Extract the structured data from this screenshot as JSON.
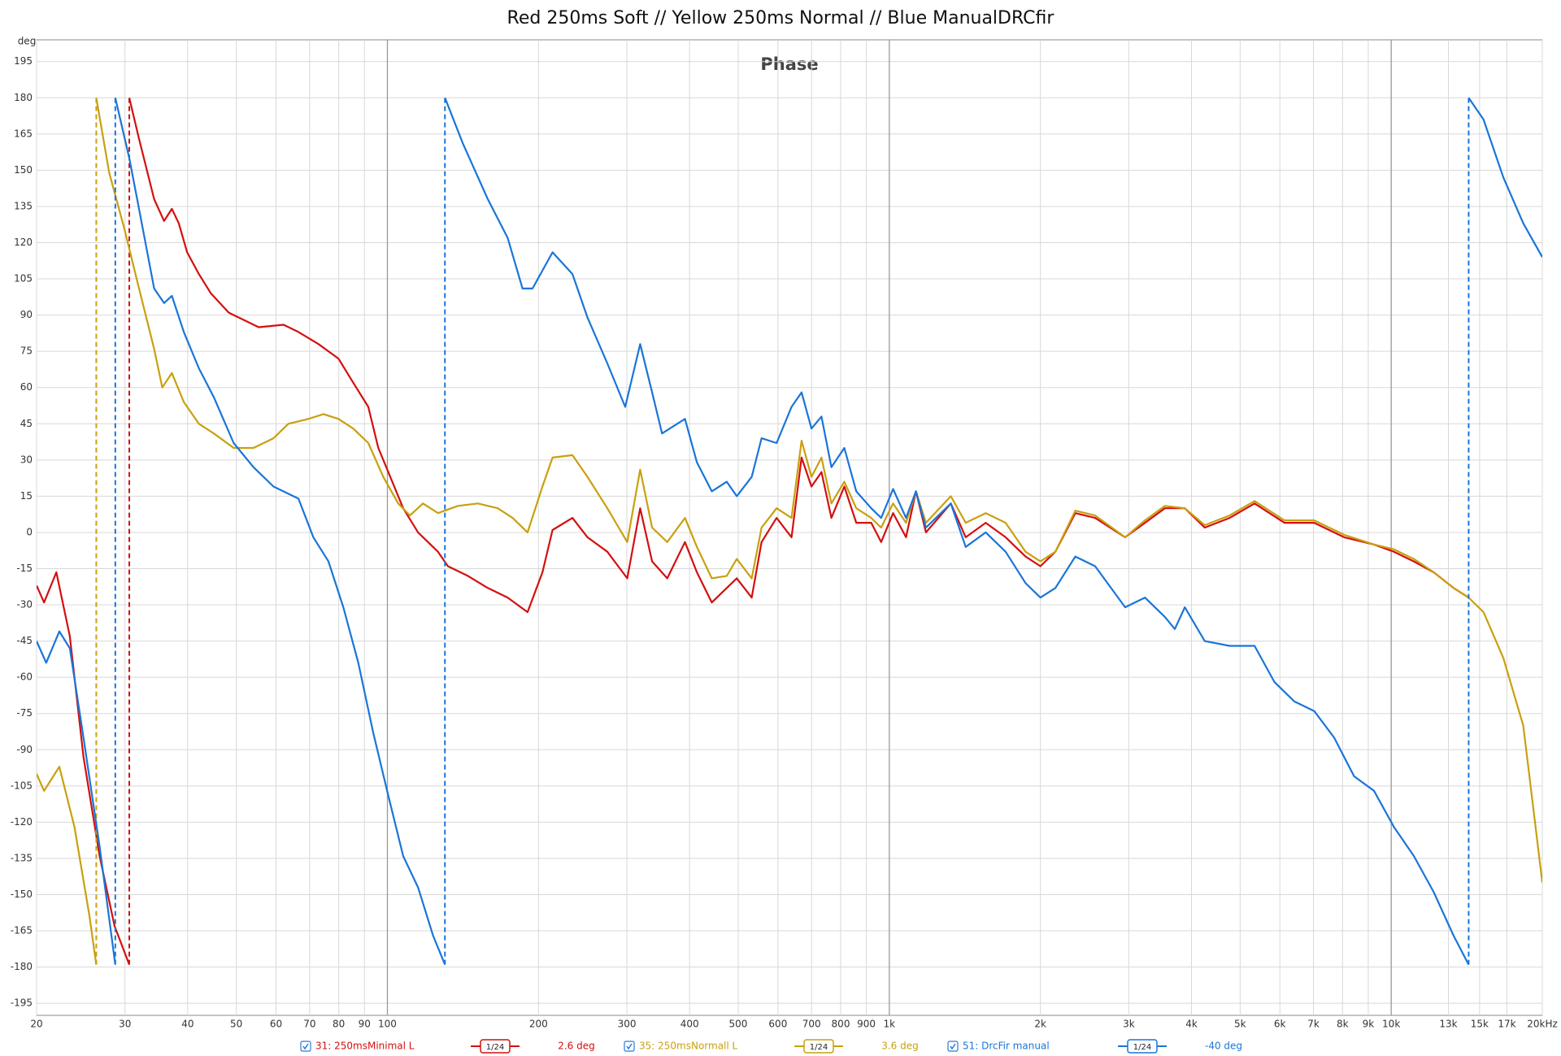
{
  "chart_data": {
    "type": "line",
    "title": "Red 250ms Soft // Yellow 250ms Normal // Blue ManualDRCfir",
    "subtitle": "Phase",
    "y_label": "deg",
    "log_x": true,
    "grid": true,
    "xlim": [
      20,
      20000
    ],
    "ylim": [
      -200,
      204
    ],
    "xticks": [
      20,
      30,
      40,
      50,
      60,
      70,
      80,
      90,
      100,
      200,
      300,
      400,
      500,
      600,
      700,
      800,
      900,
      {
        "value": 1000,
        "label": "1k"
      },
      {
        "value": 2000,
        "label": "2k"
      },
      {
        "value": 3000,
        "label": "3k"
      },
      {
        "value": 4000,
        "label": "4k"
      },
      {
        "value": 5000,
        "label": "5k"
      },
      {
        "value": 6000,
        "label": "6k"
      },
      {
        "value": 7000,
        "label": "7k"
      },
      {
        "value": 8000,
        "label": "8k"
      },
      {
        "value": 9000,
        "label": "9k"
      },
      {
        "value": 10000,
        "label": "10k"
      },
      {
        "value": 13000,
        "label": "13k"
      },
      {
        "value": 15000,
        "label": "15k"
      },
      {
        "value": 17000,
        "label": "17k"
      },
      {
        "value": 20000,
        "label": "20kHz"
      }
    ],
    "yticks": [
      195,
      180,
      165,
      150,
      135,
      120,
      105,
      90,
      75,
      60,
      45,
      30,
      15,
      0,
      -15,
      -30,
      -45,
      -60,
      -75,
      -90,
      -105,
      -120,
      -135,
      -150,
      -165,
      -180,
      -195
    ],
    "series": [
      {
        "name": "31: 250msMinimal L",
        "color": "#d40f0f",
        "smoothing": "1/24",
        "offset": "2.6 deg",
        "x": [
          20,
          20.7,
          21.9,
          23.3,
          24.8,
          26.7,
          28.6,
          30.6,
          30.6,
          32.0,
          34.3,
          35.9,
          37.2,
          38.4,
          39.9,
          42.1,
          44.5,
          48.3,
          55.4,
          62.1,
          66.5,
          72.9,
          79.9,
          85.5,
          91.6,
          95.9,
          100.4,
          107.5,
          115.1,
          126.1,
          132.0,
          144.6,
          158.5,
          173.6,
          190.2,
          203.7,
          213.3,
          233.7,
          250.4,
          274.3,
          300.5,
          318.9,
          336.9,
          361,
          391.6,
          413.7,
          443,
          474.4,
          496.6,
          531.9,
          556.6,
          596.3,
          638.5,
          668.5,
          699.8,
          732.5,
          766.6,
          813.6,
          859.5,
          920.4,
          963.4,
          1017.6,
          1079.8,
          1130.1,
          1183,
          1326,
          1420,
          1556,
          1705,
          1868,
          2000,
          2142,
          2347,
          2571,
          2950,
          3232,
          3541,
          3880,
          4251,
          4765,
          5343,
          6127,
          7025,
          8058,
          9241,
          10127,
          11093,
          12154,
          13315,
          14266
        ],
        "values": [
          -22,
          -29,
          -16.5,
          -43,
          -93,
          -134,
          -163,
          -179,
          180,
          163,
          138,
          129,
          134,
          128,
          116,
          107,
          99,
          91,
          85,
          86,
          83,
          78,
          72,
          62,
          52,
          35,
          25,
          10,
          0,
          -8,
          -14,
          -18,
          -23,
          -27,
          -33,
          -16.5,
          1,
          6,
          -2,
          -8,
          -19,
          10,
          -12,
          -19,
          -4,
          -16.5,
          -29,
          -23,
          -19,
          -27,
          -4,
          6,
          -2,
          31,
          19,
          25,
          6,
          19,
          4,
          4,
          -4,
          8,
          -2,
          17,
          0,
          12,
          -2,
          4,
          -2,
          -10,
          -14,
          -8,
          8,
          6,
          -2,
          4,
          10,
          10,
          2,
          6,
          12,
          4,
          4,
          -2,
          -5,
          -8,
          -12,
          -16.5,
          -23,
          -27
        ]
      },
      {
        "name": "35: 250msNormall L",
        "color": "#c9a00e",
        "smoothing": "1/24",
        "offset": "3.6 deg",
        "x": [
          20,
          20.7,
          22.2,
          23.8,
          25.5,
          26.3,
          26.3,
          27.9,
          29.9,
          32.0,
          34.3,
          35.6,
          37.2,
          39.3,
          42.1,
          45.1,
          49.4,
          54.1,
          59.3,
          63.5,
          69.6,
          74.6,
          79.9,
          85.5,
          91.6,
          98.1,
          105.1,
          110.9,
          117.7,
          126.1,
          138.2,
          151.4,
          165.9,
          177.6,
          190.2,
          203.7,
          213.3,
          233.7,
          250.4,
          274.3,
          300.5,
          318.9,
          336.9,
          361,
          391.6,
          413.7,
          443,
          474.4,
          496.6,
          531.9,
          556.6,
          596.3,
          638.5,
          668.5,
          699.8,
          732.5,
          766.6,
          813.6,
          859.5,
          920.4,
          963.4,
          1017.6,
          1079.8,
          1130.1,
          1183,
          1326,
          1420,
          1556,
          1705,
          1868,
          2000,
          2142,
          2347,
          2571,
          2950,
          3232,
          3541,
          3880,
          4251,
          4765,
          5343,
          6127,
          7025,
          8058,
          9241,
          10127,
          11093,
          12154,
          13315,
          14266,
          15274,
          16730,
          18330,
          20000
        ],
        "values": [
          -100,
          -107,
          -97,
          -122,
          -159,
          -179,
          180,
          149,
          126,
          101,
          76,
          60,
          66,
          54,
          45,
          41,
          35,
          35,
          39,
          45,
          47,
          49,
          47,
          43,
          37,
          23,
          12,
          7,
          12,
          8,
          11,
          12,
          10,
          6,
          0,
          19,
          31,
          32,
          23,
          10,
          -4,
          26,
          2,
          -4,
          6,
          -6,
          -19,
          -18,
          -11,
          -19,
          2,
          10,
          6,
          38,
          23,
          31,
          12,
          21,
          10,
          6,
          2,
          12,
          4,
          17,
          4,
          15,
          4,
          8,
          4,
          -8,
          -12,
          -8,
          9,
          7,
          -2,
          5,
          11,
          10,
          3,
          7,
          13,
          5,
          5,
          -1,
          -5,
          -7,
          -11,
          -16.5,
          -23,
          -27,
          -33,
          -52,
          -80,
          -145
        ]
      },
      {
        "name": "51: DrcFir manual",
        "color": "#1a75d9",
        "smoothing": "1/24",
        "offset": "-40 deg",
        "x": [
          20,
          20.9,
          22.2,
          23.3,
          24.8,
          26.7,
          28.7,
          28.7,
          30.6,
          32.0,
          34.3,
          35.9,
          37.2,
          39.3,
          42.1,
          45.1,
          49.4,
          54.1,
          59.3,
          66.5,
          71.2,
          76.3,
          81.7,
          87.5,
          93.7,
          100.4,
          107.5,
          115.1,
          123.3,
          130.2,
          130.2,
          141.4,
          158.5,
          173.6,
          185.9,
          194.6,
          213.3,
          233.7,
          250.4,
          274.3,
          297.7,
          318.9,
          336.9,
          352.5,
          391.6,
          413.7,
          443,
          474.4,
          496.6,
          531.9,
          556.6,
          596.3,
          638.5,
          668.5,
          699.8,
          732.5,
          766.6,
          813.6,
          859.5,
          920.4,
          963.4,
          1017.6,
          1079.8,
          1130.1,
          1183,
          1326,
          1420,
          1556,
          1705,
          1868,
          2000,
          2142,
          2347,
          2571,
          2950,
          3232,
          3541,
          3706,
          3880,
          4251,
          4765,
          5343,
          5853,
          6413,
          7025,
          7696,
          8433,
          9241,
          10127,
          11093,
          12154,
          13315,
          14266,
          14266,
          15274,
          16730,
          18330,
          20000
        ],
        "values": [
          -45,
          -54,
          -41,
          -48,
          -85,
          -130,
          -179,
          180,
          155,
          134,
          101,
          95,
          98,
          83,
          68,
          56,
          37,
          27,
          19,
          14,
          -2,
          -12,
          -31,
          -54,
          -83,
          -109,
          -134,
          -147,
          -167,
          -179,
          180,
          161,
          138,
          122,
          101,
          101,
          116,
          107,
          89,
          70,
          52,
          78,
          58,
          41,
          47,
          29,
          17,
          21,
          15,
          23,
          39,
          37,
          52,
          58,
          43,
          48,
          27,
          35,
          17,
          10,
          6,
          18,
          6,
          17,
          2,
          12,
          -6,
          0,
          -8,
          -21,
          -27,
          -23,
          -10,
          -14,
          -31,
          -27,
          -35,
          -40,
          -31,
          -45,
          -47,
          -47,
          -62,
          -70,
          -74,
          -85,
          -101,
          -107,
          -122,
          -134,
          -149,
          -167,
          -179,
          180,
          171,
          147,
          128,
          114
        ]
      }
    ]
  }
}
